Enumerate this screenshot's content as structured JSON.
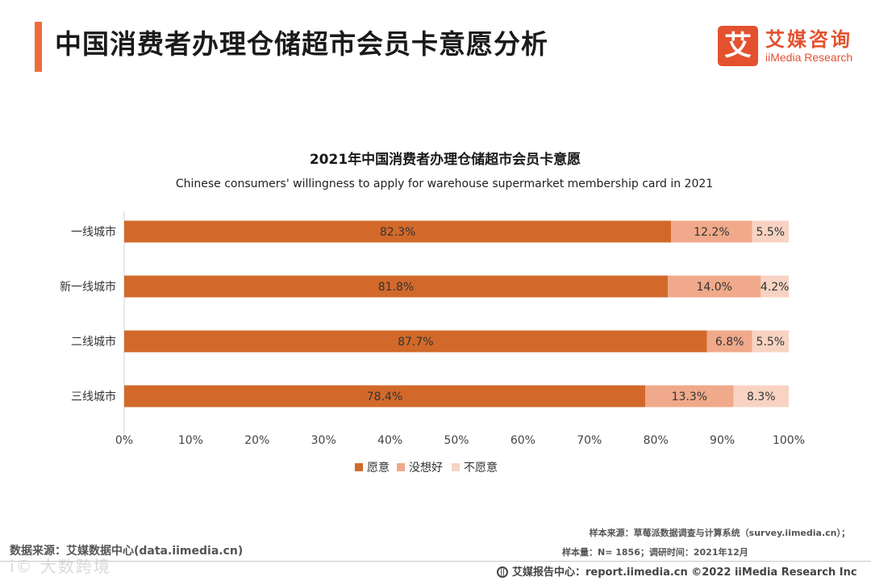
{
  "colors": {
    "accent": "#ef6c3a",
    "willing": "#d2692a",
    "neutral": "#f0a98a",
    "unwilling": "#f8d3c3",
    "logo": "#e4512e"
  },
  "page": {
    "title": "中国消费者办理仓储超市会员卡意愿分析"
  },
  "logo": {
    "glyph": "艾",
    "name_cn": "艾媒咨询",
    "name_en": "iiMedia Research"
  },
  "chart_data": {
    "type": "bar",
    "orientation": "horizontal",
    "stacked": true,
    "title": "2021年中国消费者办理仓储超市会员卡意愿",
    "subtitle": "Chinese consumers' willingness to apply for warehouse supermarket membership card in 2021",
    "categories": [
      "一线城市",
      "新一线城市",
      "二线城市",
      "三线城市"
    ],
    "series": [
      {
        "name": "愿意",
        "values": [
          82.3,
          81.8,
          87.7,
          78.4
        ],
        "labels": [
          "82.3%",
          "81.8%",
          "87.7%",
          "78.4%"
        ]
      },
      {
        "name": "没想好",
        "values": [
          12.2,
          14.0,
          6.8,
          13.3
        ],
        "labels": [
          "12.2%",
          "14.0%",
          "6.8%",
          "13.3%"
        ]
      },
      {
        "name": "不愿意",
        "values": [
          5.5,
          4.2,
          5.5,
          8.3
        ],
        "labels": [
          "5.5%",
          "4.2%",
          "5.5%",
          "8.3%"
        ]
      }
    ],
    "xlim": [
      0,
      100
    ],
    "xticks": [
      "0%",
      "10%",
      "20%",
      "30%",
      "40%",
      "50%",
      "60%",
      "70%",
      "80%",
      "90%",
      "100%"
    ],
    "grid": false,
    "legend": "bottom"
  },
  "footer": {
    "data_source": "数据来源：艾媒数据中心(data.iimedia.cn)",
    "watermark": "i© 大数跨境",
    "sample_source": "样本来源：草莓派数据调查与计算系统（survey.iimedia.cn）；",
    "sample_size": "样本量：N= 1856；调研时间：2021年12月",
    "report_center": "艾媒报告中心：report.iimedia.cn    ©2022  iiMedia Research  Inc"
  }
}
